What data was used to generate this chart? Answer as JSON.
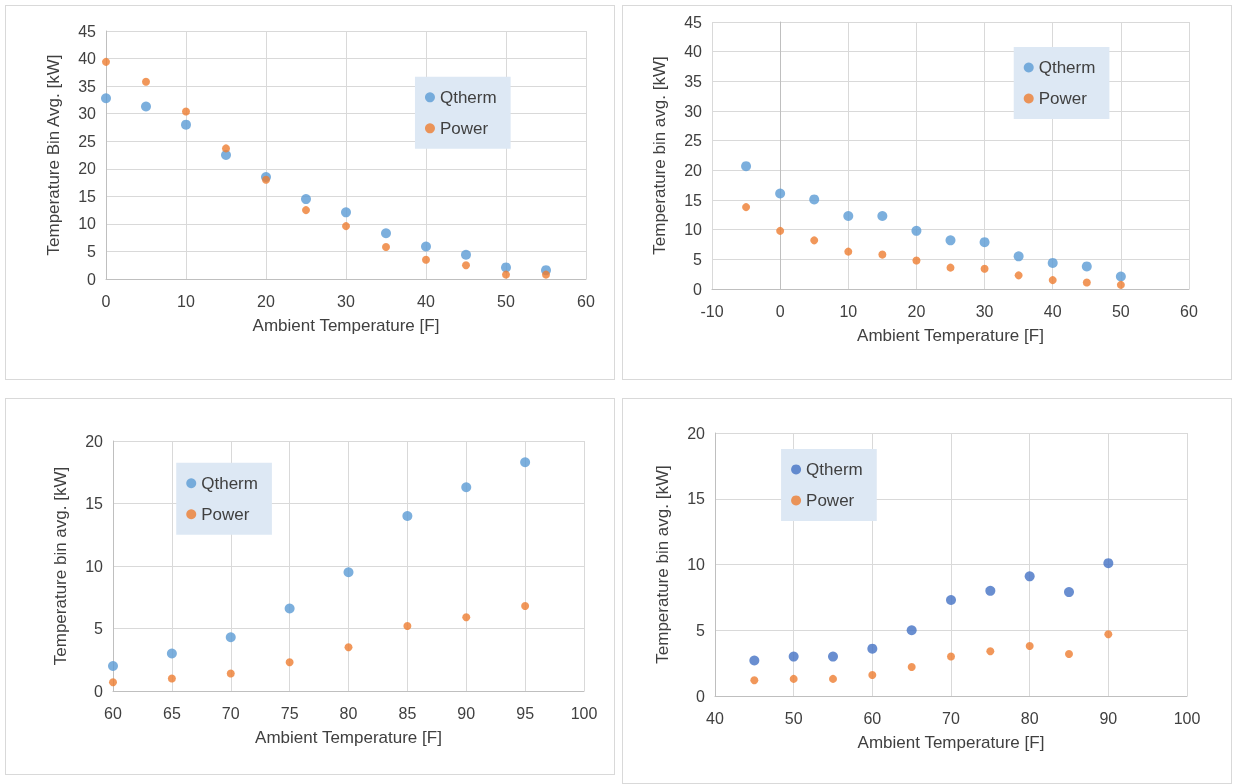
{
  "chart_data": [
    {
      "type": "scatter",
      "xlabel": "Ambient Temperature [F]",
      "ylabel": "Temperature Bin Avg. [kW]",
      "x": [
        0,
        5,
        10,
        15,
        20,
        25,
        30,
        35,
        40,
        45,
        50,
        55
      ],
      "xlim": [
        0,
        60
      ],
      "xticks": [
        0,
        10,
        20,
        30,
        40,
        50,
        60
      ],
      "ylim": [
        0,
        45
      ],
      "yticks": [
        0,
        5,
        10,
        15,
        20,
        25,
        30,
        35,
        40,
        45
      ],
      "grid": true,
      "legend": "top right",
      "marker": "circle",
      "series": [
        {
          "name": "Qtherm",
          "color": "#5b9bd5",
          "values": [
            32.8,
            31.3,
            28.0,
            22.5,
            18.5,
            14.5,
            12.1,
            8.3,
            5.9,
            4.4,
            2.1,
            1.6
          ]
        },
        {
          "name": "Power",
          "color": "#ed7d31",
          "values": [
            39.4,
            35.8,
            30.4,
            23.7,
            18.0,
            12.5,
            9.6,
            5.8,
            3.5,
            2.5,
            0.8,
            0.8
          ]
        }
      ]
    },
    {
      "type": "scatter",
      "xlabel": "Ambient Temperature [F]",
      "ylabel": "Temperature bin avg. [kW]",
      "x": [
        -5,
        0,
        5,
        10,
        15,
        20,
        25,
        30,
        35,
        40,
        45,
        50
      ],
      "xlim": [
        -10,
        60
      ],
      "xticks": [
        -10,
        0,
        10,
        20,
        30,
        40,
        50,
        60
      ],
      "ylim": [
        0,
        45
      ],
      "yticks": [
        0,
        5,
        10,
        15,
        20,
        25,
        30,
        35,
        40,
        45
      ],
      "grid": true,
      "legend": "top right",
      "marker": "circle",
      "series": [
        {
          "name": "Qtherm",
          "color": "#5b9bd5",
          "values": [
            20.7,
            16.1,
            15.1,
            12.3,
            12.3,
            9.8,
            8.2,
            7.9,
            5.5,
            4.4,
            3.8,
            2.1
          ]
        },
        {
          "name": "Power",
          "color": "#ed7d31",
          "values": [
            13.8,
            9.8,
            8.2,
            6.3,
            5.8,
            4.8,
            3.6,
            3.4,
            2.3,
            1.5,
            1.1,
            0.7
          ]
        }
      ]
    },
    {
      "type": "scatter",
      "xlabel": "Ambient Temperature [F]",
      "ylabel": "Temperature bin avg. [kW]",
      "x": [
        60,
        65,
        70,
        75,
        80,
        85,
        90,
        95
      ],
      "xlim": [
        60,
        100
      ],
      "xticks": [
        60,
        65,
        70,
        75,
        80,
        85,
        90,
        95,
        100
      ],
      "ylim": [
        0,
        20
      ],
      "yticks": [
        0,
        5,
        10,
        15,
        20
      ],
      "grid": true,
      "legend": "top left",
      "marker": "circle",
      "series": [
        {
          "name": "Qtherm",
          "color": "#5b9bd5",
          "values": [
            2.0,
            3.0,
            4.3,
            6.6,
            9.5,
            14.0,
            16.3,
            18.3
          ]
        },
        {
          "name": "Power",
          "color": "#ed7d31",
          "values": [
            0.7,
            1.0,
            1.4,
            2.3,
            3.5,
            5.2,
            5.9,
            6.8
          ]
        }
      ]
    },
    {
      "type": "scatter",
      "xlabel": "Ambient Temperature [F]",
      "ylabel": "Temperature bin avg. [kW]",
      "x": [
        45,
        50,
        55,
        60,
        65,
        70,
        75,
        80,
        85,
        90
      ],
      "xlim": [
        40,
        100
      ],
      "xticks": [
        40,
        50,
        60,
        70,
        80,
        90,
        100
      ],
      "ylim": [
        0,
        20
      ],
      "yticks": [
        0,
        5,
        10,
        15,
        20
      ],
      "grid": true,
      "legend": "top left",
      "marker": "circle",
      "series": [
        {
          "name": "Qtherm",
          "color": "#4472c4",
          "values": [
            2.7,
            3.0,
            3.0,
            3.6,
            5.0,
            7.3,
            8.0,
            9.1,
            7.9,
            10.1
          ]
        },
        {
          "name": "Power",
          "color": "#ed7d31",
          "values": [
            1.2,
            1.3,
            1.3,
            1.6,
            2.2,
            3.0,
            3.4,
            3.8,
            3.2,
            4.7
          ]
        }
      ]
    }
  ]
}
